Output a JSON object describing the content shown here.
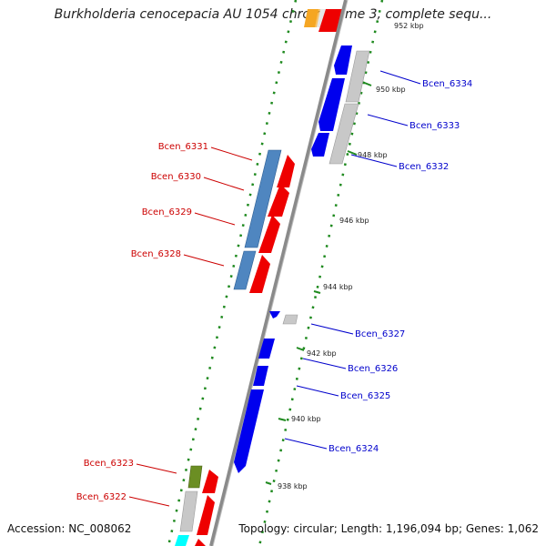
{
  "title": "Burkholderia cenocepacia AU 1054 chromosome 3, complete sequ...",
  "footer": {
    "accession": "Accession: NC_008062",
    "summary": "Topology: circular; Length: 1,196,094 bp; Genes: 1,062"
  },
  "ticks": [
    "952 kbp",
    "950 kbp",
    "948 kbp",
    "946 kbp",
    "944 kbp",
    "942 kbp",
    "940 kbp",
    "938 kbp"
  ],
  "genes_right": [
    "Bcen_6334",
    "Bcen_6333",
    "Bcen_6332",
    "Bcen_6327",
    "Bcen_6326",
    "Bcen_6325",
    "Bcen_6324"
  ],
  "genes_left": [
    "Bcen_6331",
    "Bcen_6330",
    "Bcen_6329",
    "Bcen_6328",
    "Bcen_6323",
    "Bcen_6322"
  ],
  "colors": {
    "backbone": "#8a8a8a",
    "forward_gene": "#0000ee",
    "reverse_gene": "#ee0000",
    "cog_blue": "#4f86c0",
    "cog_gray": "#c8c8c8",
    "cog_olive": "#6b8e23",
    "cog_cyan": "#00ffff",
    "gc_dots": "#1f8a1f",
    "label_right": "#0000cc",
    "label_left": "#cc0000"
  }
}
